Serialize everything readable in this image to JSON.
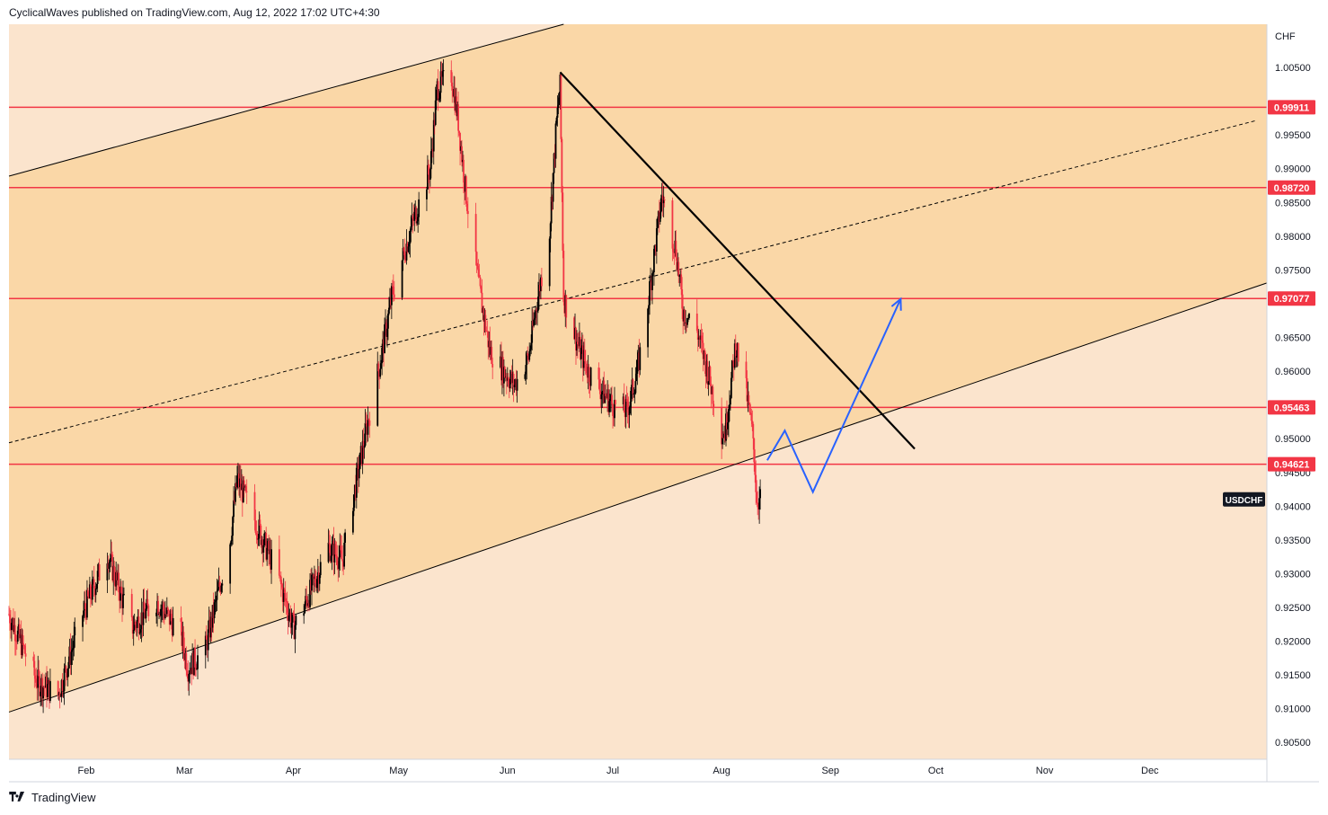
{
  "header": {
    "text": "CyclicalWaves published on TradingView.com, Aug 12, 2022 17:02 UTC+4:30"
  },
  "footer": {
    "brand": "TradingView",
    "logo_icon": "tradingview-logo-icon"
  },
  "colors": {
    "channel_inner": "#fad7a7",
    "channel_outer": "#fbe4cd",
    "level_line": "#f23645",
    "trend_line": "#000000",
    "projection": "#2962ff",
    "candle_up": "#000000",
    "candle_down": "#f23645"
  },
  "chart_data": {
    "type": "candlestick",
    "symbol": "USDCHF",
    "currency": "CHF",
    "x_ticks": [
      "Feb",
      "Mar",
      "Apr",
      "May",
      "Jun",
      "Jul",
      "Aug",
      "Sep",
      "Oct",
      "Nov",
      "Dec"
    ],
    "y_ticks": [
      "1.00500",
      "0.99500",
      "0.99000",
      "0.98500",
      "0.98000",
      "0.97500",
      "0.96500",
      "0.96000",
      "0.95000",
      "0.94500",
      "0.94000",
      "0.93500",
      "0.93000",
      "0.92500",
      "0.92000",
      "0.91500",
      "0.91000",
      "0.90500"
    ],
    "ylim": [
      0.9025,
      1.0114
    ],
    "price_series": [
      {
        "date": "2022-01-10",
        "close": 0.924
      },
      {
        "date": "2022-01-18",
        "close": 0.914
      },
      {
        "date": "2022-01-24",
        "close": 0.912
      },
      {
        "date": "2022-01-31",
        "close": 0.924
      },
      {
        "date": "2022-02-07",
        "close": 0.933
      },
      {
        "date": "2022-02-14",
        "close": 0.922
      },
      {
        "date": "2022-02-21",
        "close": 0.926
      },
      {
        "date": "2022-02-28",
        "close": 0.921
      },
      {
        "date": "2022-03-02",
        "close": 0.916
      },
      {
        "date": "2022-03-07",
        "close": 0.919
      },
      {
        "date": "2022-03-14",
        "close": 0.935
      },
      {
        "date": "2022-03-16",
        "close": 0.944
      },
      {
        "date": "2022-03-21",
        "close": 0.938
      },
      {
        "date": "2022-03-28",
        "close": 0.929
      },
      {
        "date": "2022-04-01",
        "close": 0.922
      },
      {
        "date": "2022-04-04",
        "close": 0.925
      },
      {
        "date": "2022-04-11",
        "close": 0.934
      },
      {
        "date": "2022-04-15",
        "close": 0.932
      },
      {
        "date": "2022-04-18",
        "close": 0.941
      },
      {
        "date": "2022-04-22",
        "close": 0.952
      },
      {
        "date": "2022-04-26",
        "close": 0.962
      },
      {
        "date": "2022-04-29",
        "close": 0.971
      },
      {
        "date": "2022-05-05",
        "close": 0.982
      },
      {
        "date": "2022-05-10",
        "close": 0.99
      },
      {
        "date": "2022-05-12",
        "close": 1.002
      },
      {
        "date": "2022-05-16",
        "close": 1.004
      },
      {
        "date": "2022-05-18",
        "close": 0.997
      },
      {
        "date": "2022-05-20",
        "close": 0.987
      },
      {
        "date": "2022-05-24",
        "close": 0.972
      },
      {
        "date": "2022-05-27",
        "close": 0.963
      },
      {
        "date": "2022-05-31",
        "close": 0.96
      },
      {
        "date": "2022-06-03",
        "close": 0.958
      },
      {
        "date": "2022-06-07",
        "close": 0.962
      },
      {
        "date": "2022-06-09",
        "close": 0.969
      },
      {
        "date": "2022-06-13",
        "close": 0.981
      },
      {
        "date": "2022-06-15",
        "close": 0.997
      },
      {
        "date": "2022-06-16",
        "close": 1.002
      },
      {
        "date": "2022-06-17",
        "close": 0.971
      },
      {
        "date": "2022-06-21",
        "close": 0.964
      },
      {
        "date": "2022-06-24",
        "close": 0.96
      },
      {
        "date": "2022-06-28",
        "close": 0.957
      },
      {
        "date": "2022-07-01",
        "close": 0.955
      },
      {
        "date": "2022-07-05",
        "close": 0.954
      },
      {
        "date": "2022-07-08",
        "close": 0.96
      },
      {
        "date": "2022-07-11",
        "close": 0.97
      },
      {
        "date": "2022-07-14",
        "close": 0.982
      },
      {
        "date": "2022-07-15",
        "close": 0.986
      },
      {
        "date": "2022-07-19",
        "close": 0.978
      },
      {
        "date": "2022-07-21",
        "close": 0.969
      },
      {
        "date": "2022-07-25",
        "close": 0.966
      },
      {
        "date": "2022-07-28",
        "close": 0.96
      },
      {
        "date": "2022-08-01",
        "close": 0.951
      },
      {
        "date": "2022-08-02",
        "close": 0.951
      },
      {
        "date": "2022-08-05",
        "close": 0.964
      },
      {
        "date": "2022-08-08",
        "close": 0.957
      },
      {
        "date": "2022-08-10",
        "close": 0.95
      },
      {
        "date": "2022-08-11",
        "close": 0.941
      },
      {
        "date": "2022-08-12",
        "close": 0.941
      }
    ],
    "levels": [
      "0.99911",
      "0.98720",
      "0.97077",
      "0.95463",
      "0.94621"
    ],
    "current_label": "USDCHF",
    "channel": {
      "lower_line": [
        [
          "2022-01-10",
          0.9095
        ],
        [
          "2022-09-30",
          0.9566
        ]
      ],
      "upper_line": [
        [
          "2022-01-10",
          0.9889
        ],
        [
          "2022-06-17",
          1.0114
        ]
      ],
      "mid_line": [
        [
          "2022-01-10",
          0.9494
        ],
        [
          "2022-12-31",
          0.9971
        ]
      ]
    },
    "downtrend_line": [
      [
        "2022-06-16",
        1.0043
      ],
      [
        "2022-09-25",
        0.9485
      ]
    ],
    "projection_path": [
      [
        "2022-08-14",
        0.9468
      ],
      [
        "2022-08-19",
        0.9512
      ],
      [
        "2022-08-27",
        0.9421
      ],
      [
        "2022-09-21",
        0.9707
      ]
    ]
  }
}
